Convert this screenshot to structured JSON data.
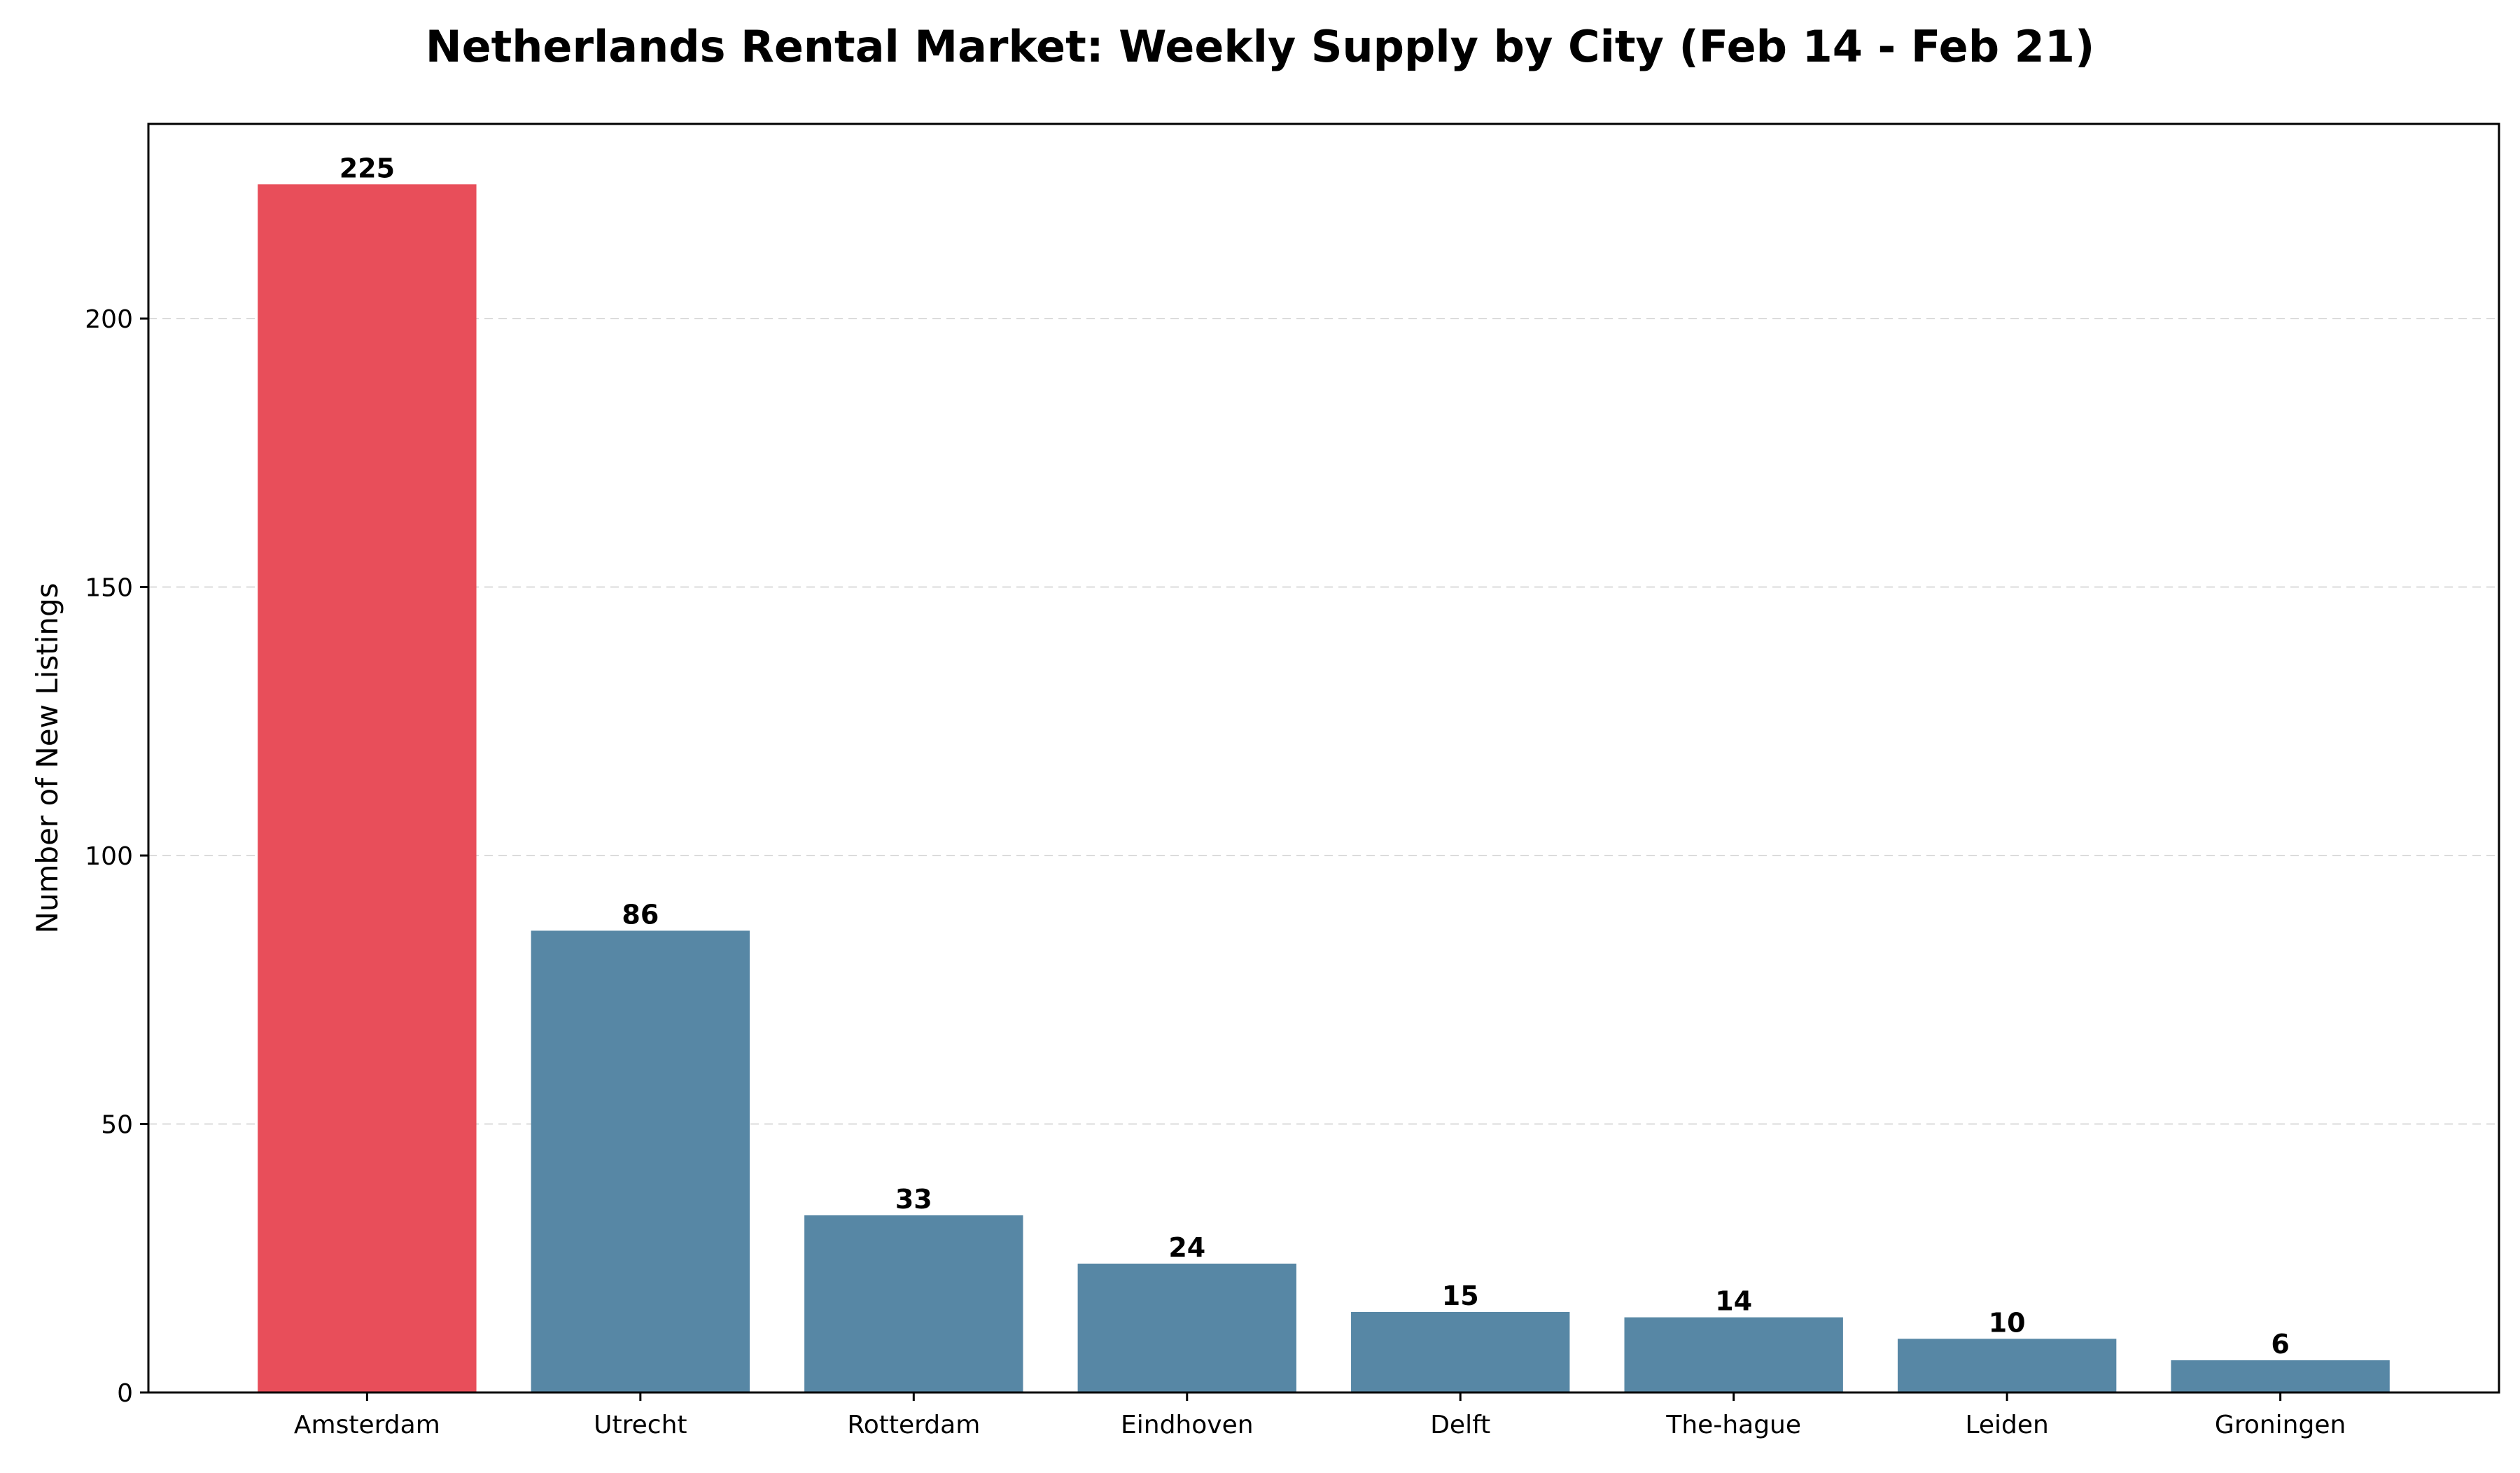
{
  "chart_data": {
    "type": "bar",
    "title": "Netherlands Rental Market: Weekly Supply by City (Feb 14 - Feb 21)",
    "xlabel": "",
    "ylabel": "Number of New Listings",
    "categories": [
      "Amsterdam",
      "Utrecht",
      "Rotterdam",
      "Eindhoven",
      "Delft",
      "The-hague",
      "Leiden",
      "Groningen"
    ],
    "values": [
      225,
      86,
      33,
      24,
      15,
      14,
      10,
      6
    ],
    "colors": [
      "#e84e5a",
      "#5787a5",
      "#5787a5",
      "#5787a5",
      "#5787a5",
      "#5787a5",
      "#5787a5",
      "#5787a5"
    ],
    "ylim": [
      0,
      236.25
    ],
    "yticks": [
      0,
      50,
      100,
      150,
      200
    ],
    "grid": "horizontal-dashed",
    "legend": "none"
  }
}
